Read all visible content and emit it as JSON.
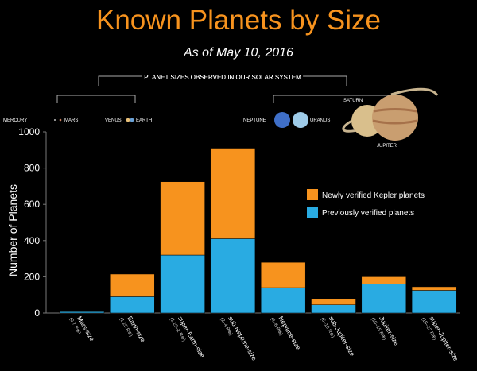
{
  "title": "Known Planets by Size",
  "subtitle": "As of May 10, 2016",
  "solar_system": {
    "heading": "PLANET SIZES OBSERVED IN OUR SOLAR SYSTEM",
    "labels": [
      "MERCURY",
      "MARS",
      "VENUS",
      "EARTH",
      "NEPTUNE",
      "URANUS",
      "SATURN",
      "JUPITER"
    ]
  },
  "colors": {
    "new": "#f7931e",
    "previous": "#29abe2",
    "title": "#f7931e"
  },
  "chart_data": {
    "type": "bar",
    "stacked": true,
    "ylabel": "Number of Planets",
    "ylim": [
      0,
      1000
    ],
    "yticks": [
      0,
      200,
      400,
      600,
      800,
      1000
    ],
    "categories": [
      "Mars-size",
      "Earth-size",
      "super-Earth-size",
      "sub-Neptune-size",
      "Neptune-size",
      "sub-Jupiter-size",
      "Jupiter-size",
      "super-Jupiter-size"
    ],
    "ranges": [
      "(0.7 R⊕)",
      "(1.25 R⊕)",
      "(1.25–2 R⊕)",
      "(2–4 R⊕)",
      "(4–6 R⊕)",
      "(6–10 R⊕)",
      "(10–15 R⊕)",
      "(15–22 R⊕)"
    ],
    "series": [
      {
        "name": "Previously verified planets",
        "values": [
          8,
          90,
          320,
          410,
          140,
          45,
          160,
          125
        ]
      },
      {
        "name": "Newly verified Kepler planets",
        "values": [
          4,
          125,
          405,
          500,
          140,
          35,
          40,
          20
        ]
      }
    ],
    "legend_position": "right"
  }
}
